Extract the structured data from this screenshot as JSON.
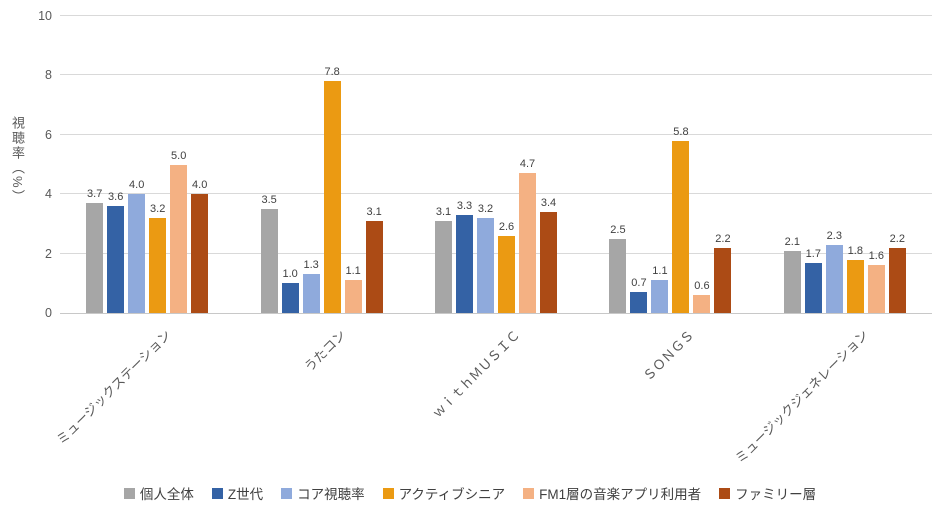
{
  "chart_data": {
    "type": "bar",
    "title": "",
    "ylabel": "視聴率（%）",
    "xlabel": "",
    "ylim": [
      0,
      10
    ],
    "yticks": [
      0,
      2,
      4,
      6,
      8,
      10
    ],
    "grid": true,
    "legend_position": "bottom",
    "value_label_decimals": 1,
    "categories": [
      "ミュージックステーション",
      "うたコン",
      "ｗｉｔｈＭＵＳＩＣ",
      "ＳＯＮＧＳ",
      "ミュージックジェネレーション"
    ],
    "series": [
      {
        "name": "個人全体",
        "color": "#a6a6a6",
        "values": [
          3.7,
          3.5,
          3.1,
          2.5,
          2.1
        ]
      },
      {
        "name": "Z世代",
        "color": "#3462a5",
        "values": [
          3.6,
          1.0,
          3.3,
          0.7,
          1.7
        ]
      },
      {
        "name": "コア視聴率",
        "color": "#8faadc",
        "values": [
          4.0,
          1.3,
          3.2,
          1.1,
          2.3
        ]
      },
      {
        "name": "アクティブシニア",
        "color": "#eb9a12",
        "values": [
          3.2,
          7.8,
          2.6,
          5.8,
          1.8
        ]
      },
      {
        "name": "FM1層の音楽アプリ利用者",
        "color": "#f4b183",
        "values": [
          5.0,
          1.1,
          4.7,
          0.6,
          1.6
        ]
      },
      {
        "name": "ファミリー層",
        "color": "#ac4b15",
        "values": [
          4.0,
          3.1,
          3.4,
          2.2,
          2.2
        ]
      }
    ],
    "colors": {
      "gridline": "#d9d9d9",
      "axis_line": "#c8c8c8",
      "tick_text": "#595959",
      "value_text": "#404040"
    }
  }
}
